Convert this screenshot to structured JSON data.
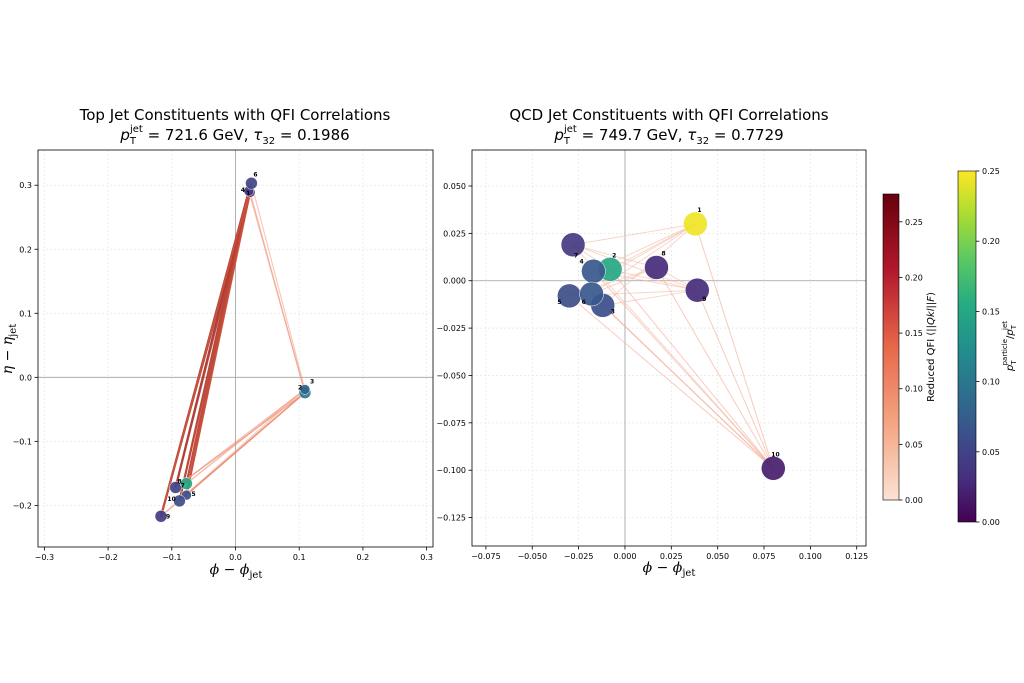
{
  "colors": {
    "qfi_low": "#fbe3d4",
    "qfi_mid": "#e8684a",
    "qfi_high": "#67000d",
    "viridis": [
      "#440154",
      "#472f7d",
      "#3b518b",
      "#2c718e",
      "#21908d",
      "#27ad81",
      "#5cc863",
      "#aadc32",
      "#fde725"
    ],
    "grid": "#e6e6e6",
    "crosshair": "#a0a0a0",
    "node_edge": "#ffffff"
  },
  "chart_data": [
    {
      "type": "scatter",
      "title_line1": "Top Jet Constituents with QFI Correlations",
      "title_line2": "pT(jet) = 721.6 GeV, τ32 = 0.1986",
      "title_pt_value": "721.6 GeV",
      "title_tau_value": "0.1986",
      "xlabel": "ϕ − ϕjet",
      "ylabel": "η − ηjet",
      "xlim": [
        -0.31,
        0.31
      ],
      "ylim": [
        -0.265,
        0.355
      ],
      "xticks": [
        -0.3,
        -0.2,
        -0.1,
        0.0,
        0.1,
        0.2,
        0.3
      ],
      "xtick_labels": [
        "−0.3",
        "−0.2",
        "−0.1",
        "0.0",
        "0.1",
        "0.2",
        "0.3"
      ],
      "yticks": [
        -0.2,
        -0.1,
        0.0,
        0.1,
        0.2,
        0.3
      ],
      "ytick_labels": [
        "−0.2",
        "−0.1",
        "0.0",
        "0.1",
        "0.2",
        "0.3"
      ],
      "points": [
        {
          "id": "1",
          "x": 0.023,
          "y": 0.289,
          "color_value": 0.03,
          "size": 5,
          "label_dx": -4,
          "label_dy": 3
        },
        {
          "id": "2",
          "x": 0.109,
          "y": -0.024,
          "color_value": 0.1,
          "size": 6,
          "label_dx": -7,
          "label_dy": -3
        },
        {
          "id": "3",
          "x": 0.109,
          "y": -0.019,
          "color_value": 0.08,
          "size": 5,
          "label_dx": 5,
          "label_dy": -6
        },
        {
          "id": "4",
          "x": 0.021,
          "y": 0.291,
          "color_value": 0.04,
          "size": 5,
          "label_dx": -8,
          "label_dy": 1
        },
        {
          "id": "5",
          "x": -0.077,
          "y": -0.184,
          "color_value": 0.06,
          "size": 5,
          "label_dx": 5,
          "label_dy": 1
        },
        {
          "id": "6",
          "x": 0.025,
          "y": 0.303,
          "color_value": 0.05,
          "size": 6,
          "label_dx": 2,
          "label_dy": -7
        },
        {
          "id": "7",
          "x": -0.094,
          "y": -0.172,
          "color_value": 0.05,
          "size": 6,
          "label_dx": 5,
          "label_dy": 0
        },
        {
          "id": "8",
          "x": -0.077,
          "y": -0.166,
          "color_value": 0.15,
          "size": 6,
          "label_dx": -9,
          "label_dy": 0
        },
        {
          "id": "9",
          "x": -0.117,
          "y": -0.217,
          "color_value": 0.04,
          "size": 6,
          "label_dx": 5,
          "label_dy": 2
        },
        {
          "id": "10",
          "x": -0.088,
          "y": -0.193,
          "color_value": 0.06,
          "size": 6,
          "label_dx": -12,
          "label_dy": 0
        }
      ],
      "edges": [
        {
          "from": "4",
          "to": "9",
          "value": 0.22
        },
        {
          "from": "4",
          "to": "7",
          "value": 0.22
        },
        {
          "from": "4",
          "to": "10",
          "value": 0.21
        },
        {
          "from": "4",
          "to": "5",
          "value": 0.2
        },
        {
          "from": "4",
          "to": "8",
          "value": 0.19
        },
        {
          "from": "1",
          "to": "9",
          "value": 0.2
        },
        {
          "from": "1",
          "to": "7",
          "value": 0.19
        },
        {
          "from": "1",
          "to": "10",
          "value": 0.18
        },
        {
          "from": "6",
          "to": "5",
          "value": 0.17
        },
        {
          "from": "6",
          "to": "9",
          "value": 0.16
        },
        {
          "from": "1",
          "to": "8",
          "value": 0.18
        },
        {
          "from": "1",
          "to": "5",
          "value": 0.17
        },
        {
          "from": "4",
          "to": "2",
          "value": 0.08
        },
        {
          "from": "1",
          "to": "2",
          "value": 0.08
        },
        {
          "from": "6",
          "to": "3",
          "value": 0.07
        },
        {
          "from": "2",
          "to": "9",
          "value": 0.1
        },
        {
          "from": "2",
          "to": "7",
          "value": 0.1
        },
        {
          "from": "2",
          "to": "10",
          "value": 0.1
        },
        {
          "from": "2",
          "to": "5",
          "value": 0.1
        },
        {
          "from": "3",
          "to": "8",
          "value": 0.09
        },
        {
          "from": "3",
          "to": "7",
          "value": 0.08
        },
        {
          "from": "3",
          "to": "9",
          "value": 0.07
        },
        {
          "from": "9",
          "to": "10",
          "value": 0.05
        },
        {
          "from": "7",
          "to": "5",
          "value": 0.05
        },
        {
          "from": "7",
          "to": "8",
          "value": 0.05
        }
      ]
    },
    {
      "type": "scatter",
      "title_line1": "QCD Jet Constituents with QFI Correlations",
      "title_line2": "pT(jet) = 749.7 GeV, τ32 = 0.7729",
      "title_pt_value": "749.7 GeV",
      "title_tau_value": "0.7729",
      "xlabel": "ϕ − ϕjet",
      "ylabel": "",
      "xlim": [
        -0.0825,
        0.13
      ],
      "ylim": [
        -0.14,
        0.069
      ],
      "xticks": [
        -0.075,
        -0.05,
        -0.025,
        0.0,
        0.025,
        0.05,
        0.075,
        0.1,
        0.125
      ],
      "xtick_labels": [
        "−0.075",
        "−0.050",
        "−0.025",
        "0.000",
        "0.025",
        "0.050",
        "0.075",
        "0.100",
        "0.125"
      ],
      "yticks": [
        -0.125,
        -0.1,
        -0.075,
        -0.05,
        -0.025,
        0.0,
        0.025,
        0.05
      ],
      "ytick_labels": [
        "−0.125",
        "−0.100",
        "−0.075",
        "−0.050",
        "−0.025",
        "0.000",
        "0.025",
        "0.050"
      ],
      "points": [
        {
          "id": "1",
          "x": 0.038,
          "y": 0.03,
          "color_value": 0.245,
          "size": 12,
          "label_dx": 2,
          "label_dy": -12
        },
        {
          "id": "2",
          "x": -0.008,
          "y": 0.006,
          "color_value": 0.15,
          "size": 12,
          "label_dx": 2,
          "label_dy": -12
        },
        {
          "id": "3",
          "x": -0.012,
          "y": -0.013,
          "color_value": 0.06,
          "size": 12,
          "label_dx": 8,
          "label_dy": 8
        },
        {
          "id": "4",
          "x": -0.017,
          "y": 0.005,
          "color_value": 0.07,
          "size": 12,
          "label_dx": -14,
          "label_dy": -8
        },
        {
          "id": "5",
          "x": -0.03,
          "y": -0.008,
          "color_value": 0.06,
          "size": 12,
          "label_dx": -12,
          "label_dy": 8
        },
        {
          "id": "6",
          "x": -0.018,
          "y": -0.007,
          "color_value": 0.07,
          "size": 12,
          "label_dx": -10,
          "label_dy": 10
        },
        {
          "id": "7",
          "x": -0.028,
          "y": 0.019,
          "color_value": 0.04,
          "size": 12,
          "label_dx": 1,
          "label_dy": 13
        },
        {
          "id": "8",
          "x": 0.017,
          "y": 0.007,
          "color_value": 0.03,
          "size": 12,
          "label_dx": 5,
          "label_dy": -12
        },
        {
          "id": "9",
          "x": 0.039,
          "y": -0.005,
          "color_value": 0.03,
          "size": 12,
          "label_dx": 5,
          "label_dy": 11
        },
        {
          "id": "10",
          "x": 0.08,
          "y": -0.099,
          "color_value": 0.02,
          "size": 12,
          "label_dx": -2,
          "label_dy": -12
        }
      ],
      "edges": [
        {
          "from": "7",
          "to": "1",
          "value": 0.05
        },
        {
          "from": "7",
          "to": "8",
          "value": 0.05
        },
        {
          "from": "7",
          "to": "9",
          "value": 0.05
        },
        {
          "from": "7",
          "to": "10",
          "value": 0.05
        },
        {
          "from": "4",
          "to": "1",
          "value": 0.05
        },
        {
          "from": "4",
          "to": "9",
          "value": 0.05
        },
        {
          "from": "4",
          "to": "10",
          "value": 0.06
        },
        {
          "from": "5",
          "to": "1",
          "value": 0.05
        },
        {
          "from": "5",
          "to": "8",
          "value": 0.05
        },
        {
          "from": "5",
          "to": "9",
          "value": 0.05
        },
        {
          "from": "5",
          "to": "10",
          "value": 0.06
        },
        {
          "from": "6",
          "to": "1",
          "value": 0.05
        },
        {
          "from": "6",
          "to": "8",
          "value": 0.05
        },
        {
          "from": "6",
          "to": "10",
          "value": 0.06
        },
        {
          "from": "3",
          "to": "1",
          "value": 0.05
        },
        {
          "from": "3",
          "to": "9",
          "value": 0.05
        },
        {
          "from": "3",
          "to": "10",
          "value": 0.06
        },
        {
          "from": "2",
          "to": "1",
          "value": 0.05
        },
        {
          "from": "2",
          "to": "9",
          "value": 0.05
        },
        {
          "from": "2",
          "to": "10",
          "value": 0.06
        },
        {
          "from": "8",
          "to": "10",
          "value": 0.06
        },
        {
          "from": "1",
          "to": "10",
          "value": 0.06
        },
        {
          "from": "9",
          "to": "10",
          "value": 0.06
        },
        {
          "from": "7",
          "to": "2",
          "value": 0.05
        },
        {
          "from": "8",
          "to": "9",
          "value": 0.05
        }
      ]
    }
  ],
  "colorbars": [
    {
      "name": "qfi",
      "label": "Reduced QFI (||Qkl||F)",
      "label_math": "||Qkl||F",
      "range": [
        0.0,
        0.275
      ],
      "ticks": [
        0.0,
        0.05,
        0.1,
        0.15,
        0.2,
        0.25
      ],
      "tick_labels": [
        "0.00",
        "0.05",
        "0.10",
        "0.15",
        "0.20",
        "0.25"
      ]
    },
    {
      "name": "momentum_fraction",
      "label": "pT(particle)/pT(jet)",
      "range": [
        0.0,
        0.25
      ],
      "ticks": [
        0.0,
        0.05,
        0.1,
        0.15,
        0.2,
        0.25
      ],
      "tick_labels": [
        "0.00",
        "0.05",
        "0.10",
        "0.15",
        "0.20",
        "0.25"
      ]
    }
  ]
}
